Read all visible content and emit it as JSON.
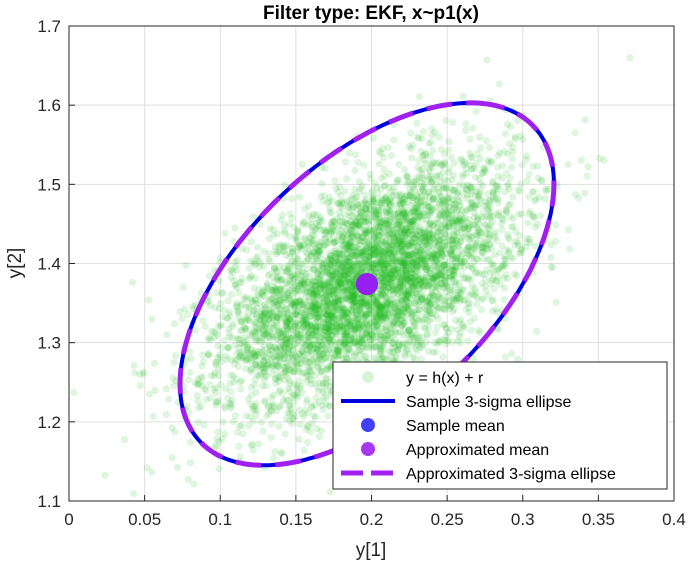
{
  "chart_data": {
    "type": "scatter",
    "title": "Filter type: EKF, x~p1(x)",
    "xlabel": "y[1]",
    "ylabel": "y[2]",
    "xlim": [
      0,
      0.4
    ],
    "ylim": [
      1.1,
      1.7
    ],
    "xticks": [
      "0",
      "0.05",
      "0.1",
      "0.15",
      "0.2",
      "0.25",
      "0.3",
      "0.35",
      "0.4"
    ],
    "yticks": [
      "1.1",
      "1.2",
      "1.3",
      "1.4",
      "1.5",
      "1.6",
      "1.7"
    ],
    "grid": true,
    "legend_location": "bottom-right",
    "scatter": {
      "mean": [
        0.197,
        1.374
      ],
      "std": [
        0.048,
        0.075
      ],
      "correlation": 0.55,
      "count": 5000,
      "color": "#22bb22",
      "opacity": 0.15
    },
    "sample_mean": [
      0.197,
      1.374
    ],
    "approximated_mean": [
      0.197,
      1.374
    ],
    "ellipse": {
      "center": [
        0.197,
        1.374
      ],
      "sigma_x": 0.0412,
      "sigma_y": 0.0763,
      "correlation": 0.553,
      "scale": 3
    },
    "series": [
      {
        "name": "y = h(x) + r",
        "marker": "dot",
        "color": "#22bb22"
      },
      {
        "name": "Sample 3-sigma ellipse",
        "marker": "line",
        "color": "#0000e0"
      },
      {
        "name": "Sample mean",
        "marker": "point",
        "color": "#2b2bff"
      },
      {
        "name": "Approximated mean",
        "marker": "point",
        "color": "#a020f0"
      },
      {
        "name": "Approximated 3-sigma ellipse",
        "marker": "dashed-line",
        "color": "#a020f0"
      }
    ]
  }
}
